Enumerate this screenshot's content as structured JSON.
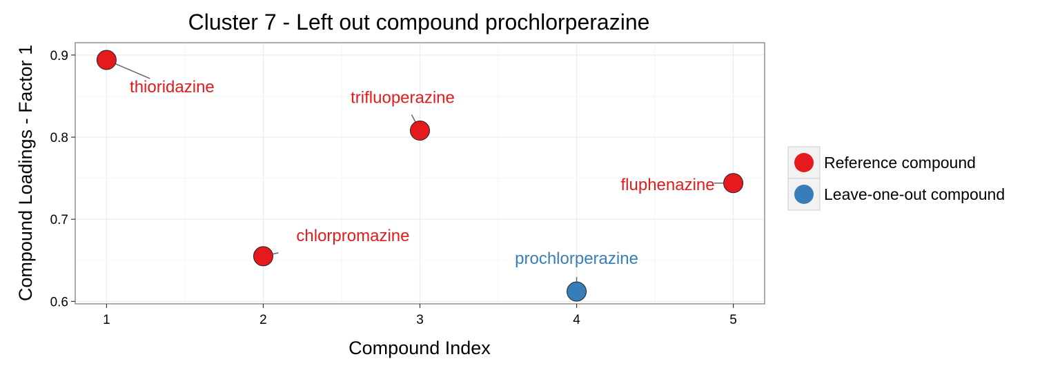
{
  "chart_data": {
    "type": "scatter",
    "title": "Cluster 7 - Left out compound prochlorperazine",
    "xlabel": "Compound Index",
    "ylabel": "Compound Loadings - Factor 1",
    "xlim": [
      0.8,
      5.2
    ],
    "ylim": [
      0.597,
      0.915
    ],
    "x_ticks": [
      1,
      2,
      3,
      4,
      5
    ],
    "x_tick_labels": [
      "1",
      "2",
      "3",
      "4",
      "5"
    ],
    "y_ticks": [
      0.6,
      0.7,
      0.8,
      0.9
    ],
    "y_tick_labels": [
      "0.6",
      "0.7",
      "0.8",
      "0.9"
    ],
    "grid": true,
    "legend_position": "right",
    "legend": [
      {
        "key": "reference",
        "label": "Reference compound",
        "color": "#e41a1c"
      },
      {
        "key": "leaveout",
        "label": "Leave-one-out compound",
        "color": "#377eb8"
      }
    ],
    "points": [
      {
        "x": 1,
        "y": 0.894,
        "label": "thioridazine",
        "group": "reference"
      },
      {
        "x": 2,
        "y": 0.655,
        "label": "chlorpromazine",
        "group": "reference"
      },
      {
        "x": 3,
        "y": 0.808,
        "label": "trifluoperazine",
        "group": "reference"
      },
      {
        "x": 4,
        "y": 0.612,
        "label": "prochlorperazine",
        "group": "leaveout"
      },
      {
        "x": 5,
        "y": 0.744,
        "label": "fluphenazine",
        "group": "reference"
      }
    ]
  }
}
